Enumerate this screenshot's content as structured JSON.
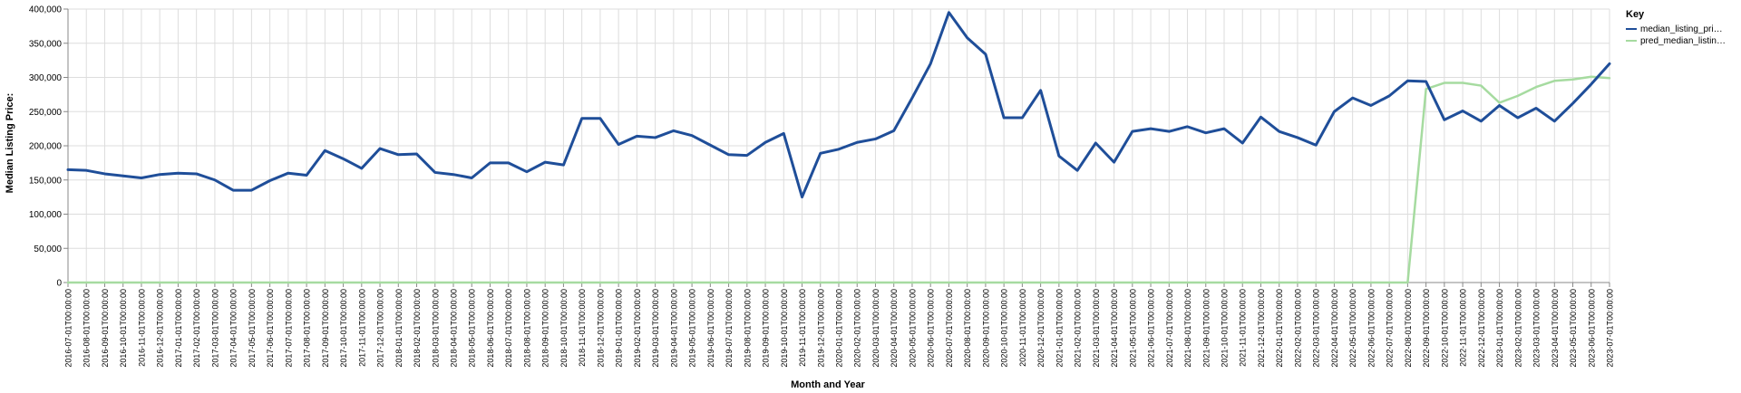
{
  "chart_data": {
    "type": "line",
    "xlabel": "Month and Year",
    "ylabel": "Median Listing Price:",
    "ylim": [
      0,
      400000
    ],
    "yticks": [
      "0",
      "50,000",
      "100,000",
      "150,000",
      "200,000",
      "250,000",
      "300,000",
      "350,000",
      "400,000"
    ],
    "ytick_values": [
      0,
      50000,
      100000,
      150000,
      200000,
      250000,
      300000,
      350000,
      400000
    ],
    "grid": true,
    "legend": {
      "title": "Key",
      "placement": "top-right",
      "entries": [
        "median_listing_pri…",
        "pred_median_listin…"
      ]
    },
    "x": [
      "2016-07-01T00:00:00",
      "2016-08-01T00:00:00",
      "2016-09-01T00:00:00",
      "2016-10-01T00:00:00",
      "2016-11-01T00:00:00",
      "2016-12-01T00:00:00",
      "2017-01-01T00:00:00",
      "2017-02-01T00:00:00",
      "2017-03-01T00:00:00",
      "2017-04-01T00:00:00",
      "2017-05-01T00:00:00",
      "2017-06-01T00:00:00",
      "2017-07-01T00:00:00",
      "2017-08-01T00:00:00",
      "2017-09-01T00:00:00",
      "2017-10-01T00:00:00",
      "2017-11-01T00:00:00",
      "2017-12-01T00:00:00",
      "2018-01-01T00:00:00",
      "2018-02-01T00:00:00",
      "2018-03-01T00:00:00",
      "2018-04-01T00:00:00",
      "2018-05-01T00:00:00",
      "2018-06-01T00:00:00",
      "2018-07-01T00:00:00",
      "2018-08-01T00:00:00",
      "2018-09-01T00:00:00",
      "2018-10-01T00:00:00",
      "2018-11-01T00:00:00",
      "2018-12-01T00:00:00",
      "2019-01-01T00:00:00",
      "2019-02-01T00:00:00",
      "2019-03-01T00:00:00",
      "2019-04-01T00:00:00",
      "2019-05-01T00:00:00",
      "2019-06-01T00:00:00",
      "2019-07-01T00:00:00",
      "2019-08-01T00:00:00",
      "2019-09-01T00:00:00",
      "2019-10-01T00:00:00",
      "2019-11-01T00:00:00",
      "2019-12-01T00:00:00",
      "2020-01-01T00:00:00",
      "2020-02-01T00:00:00",
      "2020-03-01T00:00:00",
      "2020-04-01T00:00:00",
      "2020-05-01T00:00:00",
      "2020-06-01T00:00:00",
      "2020-07-01T00:00:00",
      "2020-08-01T00:00:00",
      "2020-09-01T00:00:00",
      "2020-10-01T00:00:00",
      "2020-11-01T00:00:00",
      "2020-12-01T00:00:00",
      "2021-01-01T00:00:00",
      "2021-02-01T00:00:00",
      "2021-03-01T00:00:00",
      "2021-04-01T00:00:00",
      "2021-05-01T00:00:00",
      "2021-06-01T00:00:00",
      "2021-07-01T00:00:00",
      "2021-08-01T00:00:00",
      "2021-09-01T00:00:00",
      "2021-10-01T00:00:00",
      "2021-11-01T00:00:00",
      "2021-12-01T00:00:00",
      "2022-01-01T00:00:00",
      "2022-02-01T00:00:00",
      "2022-03-01T00:00:00",
      "2022-04-01T00:00:00",
      "2022-05-01T00:00:00",
      "2022-06-01T00:00:00",
      "2022-07-01T00:00:00",
      "2022-08-01T00:00:00",
      "2022-09-01T00:00:00",
      "2022-10-01T00:00:00",
      "2022-11-01T00:00:00",
      "2022-12-01T00:00:00",
      "2023-01-01T00:00:00",
      "2023-02-01T00:00:00",
      "2023-03-01T00:00:00",
      "2023-04-01T00:00:00",
      "2023-05-01T00:00:00",
      "2023-06-01T00:00:00",
      "2023-07-01T00:00:00"
    ],
    "series": [
      {
        "name": "median_listing_pri…",
        "color": "#1f4e99",
        "values": [
          165000,
          164000,
          159000,
          156000,
          153000,
          158000,
          160000,
          159000,
          150000,
          135000,
          135000,
          149000,
          160000,
          157000,
          193000,
          181000,
          167000,
          196000,
          187000,
          188000,
          161000,
          158000,
          153000,
          175000,
          175000,
          162000,
          176000,
          172000,
          240000,
          240000,
          202000,
          214000,
          212000,
          222000,
          215000,
          201000,
          187000,
          186000,
          205000,
          218000,
          125000,
          189000,
          195000,
          205000,
          210000,
          222000,
          270000,
          320000,
          395000,
          358000,
          334000,
          241000,
          241000,
          281000,
          185000,
          164000,
          204000,
          176000,
          221000,
          225000,
          221000,
          228000,
          219000,
          225000,
          204000,
          242000,
          221000,
          212000,
          201000,
          250000,
          270000,
          259000,
          273000,
          295000,
          294000,
          238000,
          251000,
          236000,
          259000,
          241000,
          255000,
          236000,
          262000,
          290000,
          320000
        ]
      },
      {
        "name": "pred_median_listin…",
        "color": "#a6dba0",
        "values": [
          0,
          0,
          0,
          0,
          0,
          0,
          0,
          0,
          0,
          0,
          0,
          0,
          0,
          0,
          0,
          0,
          0,
          0,
          0,
          0,
          0,
          0,
          0,
          0,
          0,
          0,
          0,
          0,
          0,
          0,
          0,
          0,
          0,
          0,
          0,
          0,
          0,
          0,
          0,
          0,
          0,
          0,
          0,
          0,
          0,
          0,
          0,
          0,
          0,
          0,
          0,
          0,
          0,
          0,
          0,
          0,
          0,
          0,
          0,
          0,
          0,
          0,
          0,
          0,
          0,
          0,
          0,
          0,
          0,
          0,
          0,
          0,
          0,
          0,
          283000,
          292000,
          292000,
          288000,
          263000,
          273000,
          286000,
          295000,
          297000,
          301000,
          299000
        ]
      }
    ]
  }
}
